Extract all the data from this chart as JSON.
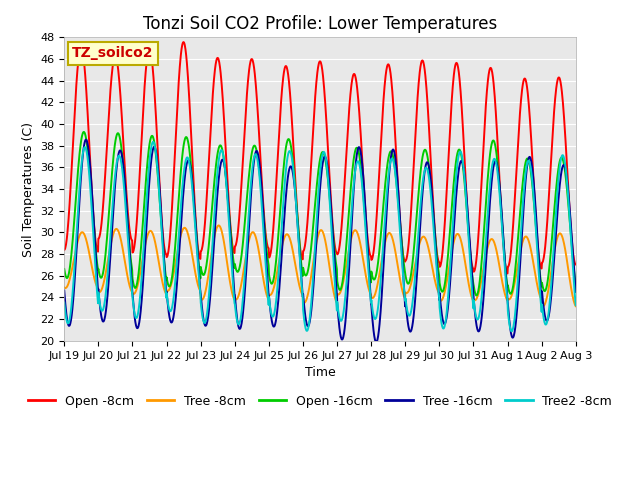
{
  "title": "Tonzi Soil CO2 Profile: Lower Temperatures",
  "xlabel": "Time",
  "ylabel": "Soil Temperatures (C)",
  "ylim": [
    20,
    48
  ],
  "xlim": [
    0,
    15
  ],
  "annotation": "TZ_soilco2",
  "annotation_color": "#cc0000",
  "annotation_bg": "#ffffcc",
  "annotation_border": "#bbaa00",
  "plot_bg_color": "#e8e8e8",
  "series_colors": [
    "#ff0000",
    "#ff9900",
    "#00cc00",
    "#000099",
    "#00cccc"
  ],
  "series_labels": [
    "Open -8cm",
    "Tree -8cm",
    "Open -16cm",
    "Tree -16cm",
    "Tree2 -8cm"
  ],
  "line_width": 1.4,
  "xtick_labels": [
    "Jul 19",
    "Jul 20",
    "Jul 21",
    "Jul 22",
    "Jul 23",
    "Jul 24",
    "Jul 25",
    "Jul 26",
    "Jul 27",
    "Jul 28",
    "Jul 29",
    "Jul 30",
    "Jul 31",
    "Aug 1",
    "Aug 2",
    "Aug 3"
  ],
  "n_days": 15,
  "points_per_day": 96,
  "title_fontsize": 12,
  "axis_label_fontsize": 9,
  "tick_fontsize": 8,
  "legend_fontsize": 9
}
